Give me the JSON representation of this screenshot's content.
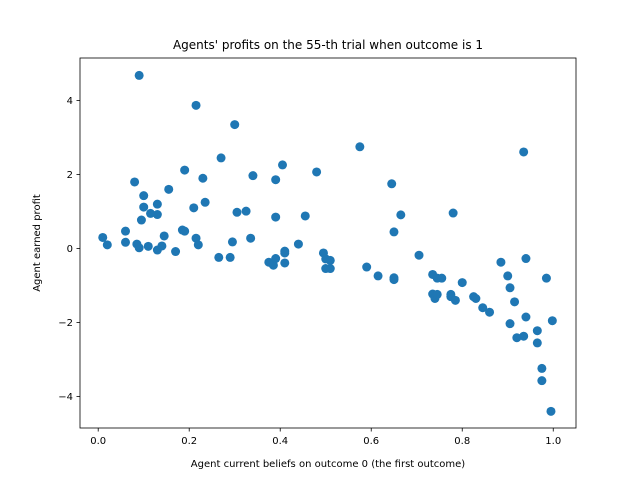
{
  "chart_data": {
    "type": "scatter",
    "title": "Agents' profits on the 55-th trial when outcome is 1",
    "xlabel": "Agent current beliefs on outcome 0 (the first outcome)",
    "ylabel": "Agent earned profit",
    "xlim": [
      -0.04,
      1.05
    ],
    "ylim": [
      -4.85,
      5.15
    ],
    "x_ticks": [
      0.0,
      0.2,
      0.4,
      0.6,
      0.8,
      1.0
    ],
    "x_tick_labels": [
      "0.0",
      "0.2",
      "0.4",
      "0.6",
      "0.8",
      "1.0"
    ],
    "y_ticks": [
      -4,
      -2,
      0,
      2,
      4
    ],
    "y_tick_labels": [
      "−4",
      "−2",
      "0",
      "2",
      "4"
    ],
    "grid": false,
    "marker_color": "#1f77b4",
    "series": [
      {
        "points": [
          [
            0.01,
            0.3
          ],
          [
            0.02,
            0.1
          ],
          [
            0.06,
            0.47
          ],
          [
            0.06,
            0.17
          ],
          [
            0.08,
            1.8
          ],
          [
            0.085,
            0.12
          ],
          [
            0.09,
            0.02
          ],
          [
            0.09,
            4.68
          ],
          [
            0.095,
            0.77
          ],
          [
            0.1,
            1.43
          ],
          [
            0.1,
            1.12
          ],
          [
            0.11,
            0.06
          ],
          [
            0.115,
            0.95
          ],
          [
            0.13,
            1.2
          ],
          [
            0.13,
            0.92
          ],
          [
            0.13,
            -0.04
          ],
          [
            0.14,
            0.07
          ],
          [
            0.145,
            0.34
          ],
          [
            0.155,
            1.6
          ],
          [
            0.17,
            -0.08
          ],
          [
            0.185,
            0.5
          ],
          [
            0.19,
            2.12
          ],
          [
            0.19,
            0.47
          ],
          [
            0.21,
            1.1
          ],
          [
            0.215,
            3.87
          ],
          [
            0.215,
            0.28
          ],
          [
            0.22,
            0.1
          ],
          [
            0.23,
            1.9
          ],
          [
            0.235,
            1.25
          ],
          [
            0.265,
            -0.24
          ],
          [
            0.27,
            2.45
          ],
          [
            0.29,
            -0.24
          ],
          [
            0.295,
            0.18
          ],
          [
            0.3,
            3.35
          ],
          [
            0.305,
            0.98
          ],
          [
            0.325,
            1.01
          ],
          [
            0.335,
            0.28
          ],
          [
            0.34,
            1.97
          ],
          [
            0.375,
            -0.37
          ],
          [
            0.385,
            -0.45
          ],
          [
            0.39,
            1.86
          ],
          [
            0.39,
            0.85
          ],
          [
            0.39,
            -0.27
          ],
          [
            0.405,
            2.26
          ],
          [
            0.41,
            -0.07
          ],
          [
            0.41,
            -0.12
          ],
          [
            0.41,
            -0.39
          ],
          [
            0.44,
            0.12
          ],
          [
            0.455,
            0.88
          ],
          [
            0.48,
            2.07
          ],
          [
            0.495,
            -0.12
          ],
          [
            0.5,
            -0.28
          ],
          [
            0.5,
            -0.54
          ],
          [
            0.51,
            -0.32
          ],
          [
            0.51,
            -0.54
          ],
          [
            0.575,
            2.75
          ],
          [
            0.59,
            -0.5
          ],
          [
            0.615,
            -0.74
          ],
          [
            0.645,
            1.75
          ],
          [
            0.65,
            0.45
          ],
          [
            0.65,
            -0.79
          ],
          [
            0.65,
            -0.84
          ],
          [
            0.665,
            0.91
          ],
          [
            0.705,
            -0.18
          ],
          [
            0.735,
            -0.7
          ],
          [
            0.735,
            -1.23
          ],
          [
            0.74,
            -1.3
          ],
          [
            0.74,
            -1.35
          ],
          [
            0.745,
            -0.8
          ],
          [
            0.745,
            -1.24
          ],
          [
            0.755,
            -0.8
          ],
          [
            0.775,
            -1.24
          ],
          [
            0.775,
            -1.3
          ],
          [
            0.78,
            0.96
          ],
          [
            0.785,
            -1.4
          ],
          [
            0.8,
            -0.92
          ],
          [
            0.825,
            -1.3
          ],
          [
            0.83,
            -1.35
          ],
          [
            0.845,
            -1.6
          ],
          [
            0.86,
            -1.72
          ],
          [
            0.885,
            -0.37
          ],
          [
            0.9,
            -0.74
          ],
          [
            0.905,
            -1.06
          ],
          [
            0.905,
            -2.03
          ],
          [
            0.915,
            -1.44
          ],
          [
            0.92,
            -2.41
          ],
          [
            0.935,
            2.61
          ],
          [
            0.935,
            -2.37
          ],
          [
            0.94,
            -0.27
          ],
          [
            0.94,
            -1.85
          ],
          [
            0.965,
            -2.22
          ],
          [
            0.965,
            -2.55
          ],
          [
            0.975,
            -3.24
          ],
          [
            0.975,
            -3.57
          ],
          [
            0.985,
            -0.8
          ],
          [
            0.995,
            -4.4
          ],
          [
            0.998,
            -1.95
          ]
        ]
      }
    ]
  }
}
